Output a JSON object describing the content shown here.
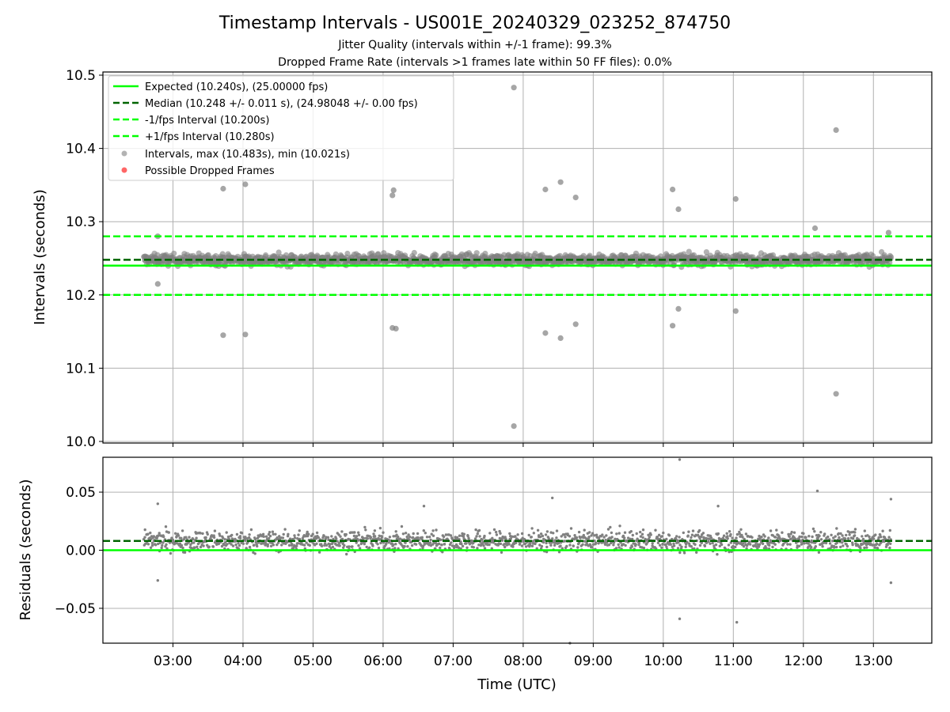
{
  "figure": {
    "title": "Timestamp Intervals - US001E_20240329_023252_874750",
    "subtitle1": "Jitter Quality (intervals within +/-1 frame): 99.3%",
    "subtitle2": "Dropped Frame Rate (intervals >1 frames late within 50 FF files): 0.0%"
  },
  "colors": {
    "expected": "#00ff00",
    "median": "#006400",
    "fps_interval": "#00ff00",
    "points": "#808080",
    "dropped": "#ff0000"
  },
  "chart_data": [
    {
      "type": "scatter",
      "ylabel": "Intervals (seconds)",
      "ylim": [
        10.0,
        10.5
      ],
      "yticks": [
        10.0,
        10.1,
        10.2,
        10.3,
        10.4,
        10.5
      ],
      "yticklabels": [
        "10.0",
        "10.1",
        "10.2",
        "10.3",
        "10.4",
        "10.5"
      ],
      "xlim": [
        "02:00",
        "13:50"
      ],
      "grid": true,
      "legend_position": "top-left",
      "reference_lines": [
        {
          "name": "Expected (10.240s), (25.00000 fps)",
          "y": 10.24,
          "style": "solid",
          "color": "#00ff00"
        },
        {
          "name": "Median (10.248 +/- 0.011 s), (24.98048 +/- 0.00 fps)",
          "y": 10.248,
          "style": "dashed",
          "color": "#006400"
        },
        {
          "name": "-1/fps Interval (10.200s)",
          "y": 10.2,
          "style": "dashed",
          "color": "#00ff00"
        },
        {
          "name": "+1/fps Interval (10.280s)",
          "y": 10.28,
          "style": "dashed",
          "color": "#00ff00"
        }
      ],
      "series": [
        {
          "name": "Intervals, max (10.483s), min (10.021s)",
          "color": "#808080",
          "marker": "circle",
          "band": {
            "x_start": "02:35",
            "x_end": "13:15",
            "center": 10.248,
            "spread": 0.011
          },
          "outliers": [
            {
              "x": "02:47",
              "y": 10.28
            },
            {
              "x": "02:47",
              "y": 10.215
            },
            {
              "x": "03:43",
              "y": 10.345
            },
            {
              "x": "03:43",
              "y": 10.145
            },
            {
              "x": "04:02",
              "y": 10.351
            },
            {
              "x": "04:02",
              "y": 10.146
            },
            {
              "x": "06:09",
              "y": 10.343
            },
            {
              "x": "06:08",
              "y": 10.336
            },
            {
              "x": "06:08",
              "y": 10.155
            },
            {
              "x": "06:11",
              "y": 10.154
            },
            {
              "x": "07:52",
              "y": 10.483
            },
            {
              "x": "07:52",
              "y": 10.021
            },
            {
              "x": "08:19",
              "y": 10.344
            },
            {
              "x": "08:19",
              "y": 10.148
            },
            {
              "x": "08:32",
              "y": 10.354
            },
            {
              "x": "08:32",
              "y": 10.141
            },
            {
              "x": "08:45",
              "y": 10.333
            },
            {
              "x": "08:45",
              "y": 10.16
            },
            {
              "x": "10:08",
              "y": 10.344
            },
            {
              "x": "10:08",
              "y": 10.158
            },
            {
              "x": "10:13",
              "y": 10.317
            },
            {
              "x": "10:13",
              "y": 10.181
            },
            {
              "x": "11:02",
              "y": 10.331
            },
            {
              "x": "11:02",
              "y": 10.178
            },
            {
              "x": "12:28",
              "y": 10.425
            },
            {
              "x": "12:28",
              "y": 10.065
            },
            {
              "x": "12:10",
              "y": 10.291
            },
            {
              "x": "13:13",
              "y": 10.285
            }
          ]
        },
        {
          "name": "Possible Dropped Frames",
          "color": "#ff0000",
          "marker": "circle",
          "points": []
        }
      ]
    },
    {
      "type": "scatter",
      "ylabel": "Residuals (seconds)",
      "xlabel": "Time (UTC)",
      "ylim": [
        -0.08,
        0.08
      ],
      "yticks": [
        -0.05,
        0.0,
        0.05
      ],
      "yticklabels": [
        "−0.05",
        "0.00",
        "0.05"
      ],
      "xticks": [
        "03:00",
        "04:00",
        "05:00",
        "06:00",
        "07:00",
        "08:00",
        "09:00",
        "10:00",
        "11:00",
        "12:00",
        "13:00"
      ],
      "xlim": [
        "02:00",
        "13:50"
      ],
      "grid": true,
      "reference_lines": [
        {
          "y": 0.0,
          "style": "solid",
          "color": "#00ff00"
        },
        {
          "y": 0.008,
          "style": "dashed",
          "color": "#006400"
        }
      ],
      "series": [
        {
          "color": "#808080",
          "marker": "dot",
          "band": {
            "x_start": "02:35",
            "x_end": "13:15",
            "center": 0.008,
            "spread": 0.011
          },
          "outliers": [
            {
              "x": "10:14",
              "y": 0.078
            },
            {
              "x": "10:14",
              "y": -0.059
            },
            {
              "x": "11:03",
              "y": -0.062
            },
            {
              "x": "08:40",
              "y": -0.08
            },
            {
              "x": "02:47",
              "y": 0.04
            },
            {
              "x": "02:47",
              "y": -0.026
            },
            {
              "x": "12:12",
              "y": 0.051
            },
            {
              "x": "13:15",
              "y": 0.044
            },
            {
              "x": "13:15",
              "y": -0.028
            },
            {
              "x": "08:25",
              "y": 0.045
            },
            {
              "x": "06:35",
              "y": 0.038
            },
            {
              "x": "10:47",
              "y": 0.038
            }
          ]
        }
      ]
    }
  ]
}
